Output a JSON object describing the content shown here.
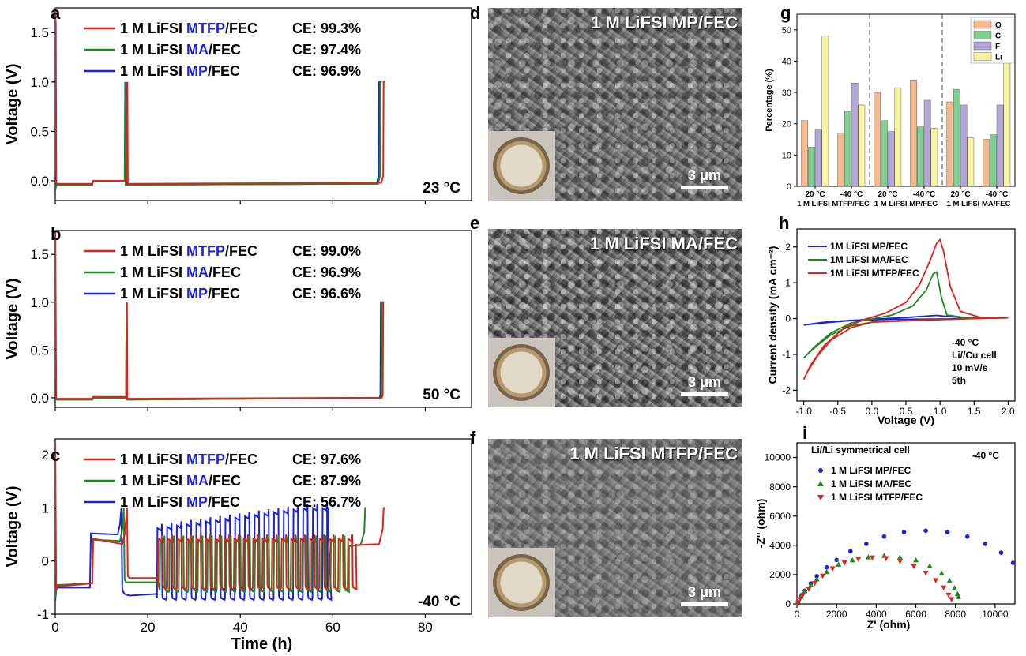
{
  "chart_data": [
    {
      "id": "a",
      "type": "line",
      "panel_label": "a",
      "xlim": [
        0,
        90
      ],
      "ylim": [
        -0.2,
        1.75
      ],
      "xticks": [
        0,
        20,
        40,
        60,
        80
      ],
      "xticklabels": [
        "",
        "",
        "",
        "",
        ""
      ],
      "yticks": [
        0.0,
        0.5,
        1.0,
        1.5
      ],
      "yticklabels": [
        "0.0",
        "0.5",
        "1.0",
        "1.5"
      ],
      "ylabel": "Voltage (V)",
      "xlabel": "",
      "annotation": "23 °C",
      "legend": [
        {
          "prefix": "1 M LiFSI ",
          "solvent": "MTFP",
          "suffix": "/FEC",
          "ce": "CE: 99.3%"
        },
        {
          "prefix": "1 M LiFSI ",
          "solvent": "MA",
          "suffix": "/FEC",
          "ce": "CE: 97.4%"
        },
        {
          "prefix": "1 M LiFSI ",
          "solvent": "MP",
          "suffix": "/FEC",
          "ce": "CE: 96.9%"
        }
      ],
      "series": [
        {
          "name": "1 M LiFSI MTFP/FEC",
          "color": "#e3211c",
          "x": [
            0,
            0.2,
            0.4,
            8,
            8.2,
            15.5,
            15.6,
            15.7,
            16,
            70.5,
            70.9,
            71,
            71.3
          ],
          "y": [
            1.9,
            -0.02,
            -0.03,
            -0.03,
            0.0,
            0.0,
            1.0,
            -0.03,
            -0.03,
            -0.02,
            0.05,
            1.0,
            1.0
          ]
        },
        {
          "name": "1 M LiFSI MA/FEC",
          "color": "#1a8a1a",
          "x": [
            0,
            0.2,
            0.4,
            8,
            8.2,
            15.0,
            15.1,
            15.2,
            15.5,
            69.8,
            70.2,
            70.3,
            70.6
          ],
          "y": [
            -0.1,
            -0.05,
            -0.04,
            -0.04,
            0.0,
            0.0,
            1.0,
            -0.04,
            -0.04,
            -0.03,
            0.05,
            1.0,
            1.0
          ]
        },
        {
          "name": "1 M LiFSI MP/FEC",
          "color": "#1a22e0",
          "x": [
            0,
            0.1,
            0.2,
            0.4,
            8,
            8.2,
            15.2,
            15.3,
            15.4,
            15.7,
            69.5,
            69.9,
            70.0,
            70.3
          ],
          "y": [
            1.65,
            1.6,
            -0.02,
            -0.04,
            -0.04,
            0.0,
            0.0,
            1.0,
            -0.04,
            -0.04,
            -0.03,
            0.05,
            1.0,
            1.0
          ]
        }
      ]
    },
    {
      "id": "b",
      "type": "line",
      "panel_label": "b",
      "xlim": [
        0,
        90
      ],
      "ylim": [
        -0.1,
        1.75
      ],
      "xticks": [
        0,
        20,
        40,
        60,
        80
      ],
      "xticklabels": [
        "",
        "",
        "",
        "",
        ""
      ],
      "yticks": [
        0.0,
        0.5,
        1.0,
        1.5
      ],
      "yticklabels": [
        "0.0",
        "0.5",
        "1.0",
        "1.5"
      ],
      "ylabel": "Voltage (V)",
      "xlabel": "",
      "annotation": "50 °C",
      "legend": [
        {
          "prefix": "1 M LiFSI ",
          "solvent": "MTFP",
          "suffix": "/FEC",
          "ce": "CE: 99.0%"
        },
        {
          "prefix": "1 M LiFSI ",
          "solvent": "MA",
          "suffix": "/FEC",
          "ce": "CE: 96.9%"
        },
        {
          "prefix": "1 M LiFSI ",
          "solvent": "MP",
          "suffix": "/FEC",
          "ce": "CE: 96.6%"
        }
      ],
      "series": [
        {
          "name": "1 M LiFSI MTFP/FEC",
          "color": "#e3211c",
          "x": [
            0,
            0.2,
            0.4,
            8,
            8.2,
            15.4,
            15.5,
            15.6,
            16,
            70.6,
            70.8,
            70.9,
            71.1
          ],
          "y": [
            1.9,
            -0.01,
            -0.01,
            -0.01,
            0.01,
            0.01,
            1.0,
            -0.01,
            -0.01,
            0.0,
            0.03,
            1.0,
            1.0
          ]
        },
        {
          "name": "1 M LiFSI MA/FEC",
          "color": "#1a8a1a",
          "x": [
            0,
            0.2,
            0.4,
            8,
            8.2,
            15.3,
            15.4,
            15.5,
            16,
            70.3,
            70.5,
            70.6,
            70.8
          ],
          "y": [
            -0.02,
            -0.02,
            -0.02,
            -0.02,
            0.0,
            0.0,
            1.0,
            -0.02,
            -0.02,
            0.0,
            0.03,
            1.0,
            1.0
          ]
        },
        {
          "name": "1 M LiFSI MP/FEC",
          "color": "#1a22e0",
          "x": [
            0,
            0.2,
            0.4,
            8,
            8.2,
            15.3,
            15.4,
            15.5,
            16,
            70.1,
            70.3,
            70.4,
            70.6
          ],
          "y": [
            -0.02,
            -0.02,
            -0.02,
            -0.02,
            0.0,
            0.0,
            1.0,
            -0.02,
            -0.02,
            0.0,
            0.03,
            1.0,
            1.0
          ]
        }
      ]
    },
    {
      "id": "c",
      "type": "line",
      "panel_label": "c",
      "xlim": [
        0,
        90
      ],
      "ylim": [
        -1.0,
        2.3
      ],
      "xticks": [
        0,
        20,
        40,
        60,
        80
      ],
      "xticklabels": [
        "0",
        "20",
        "40",
        "60",
        "80"
      ],
      "yticks": [
        -1,
        0,
        1,
        2
      ],
      "yticklabels": [
        "-1",
        "0",
        "1",
        "2"
      ],
      "ylabel": "Voltage (V)",
      "xlabel": "Time (h)",
      "annotation": "-40 °C",
      "legend": [
        {
          "prefix": "1 M LiFSI ",
          "solvent": "MTFP",
          "suffix": "/FEC",
          "ce": "CE: 97.6%"
        },
        {
          "prefix": "1 M LiFSI ",
          "solvent": "MA",
          "suffix": "/FEC",
          "ce": "CE: 87.9%"
        },
        {
          "prefix": "1 M LiFSI ",
          "solvent": "MP",
          "suffix": "/FEC",
          "ce": "CE: 56.7%"
        }
      ],
      "series": [
        {
          "name": "1 M LiFSI MTFP/FEC",
          "color": "#e3211c",
          "x": [
            0,
            0.2,
            0.5,
            8,
            8.2,
            14.5,
            15,
            15.5,
            15.7,
            16,
            22.2
          ],
          "y": [
            2.2,
            -0.55,
            -0.48,
            -0.42,
            0.42,
            0.32,
            0.5,
            1.0,
            -0.28,
            -0.32,
            -0.32
          ],
          "cycle": {
            "start": 22.2,
            "period": 2.05,
            "count": 21,
            "low": -0.5,
            "high": 0.42
          },
          "tail": {
            "x": [
              65.0,
              65.1,
              70,
              70.8,
              71,
              71.3
            ],
            "y": [
              0.32,
              0.3,
              0.32,
              0.6,
              1.0,
              1.0
            ]
          }
        },
        {
          "name": "1 M LiFSI MA/FEC",
          "color": "#1a8a1a",
          "x": [
            0,
            0.2,
            0.5,
            8,
            8.2,
            14,
            14.5,
            14.8,
            15.0,
            15.3,
            22.2
          ],
          "y": [
            -0.7,
            -0.5,
            -0.45,
            -0.42,
            0.4,
            0.38,
            0.6,
            1.0,
            -0.35,
            -0.4,
            -0.4
          ],
          "cycle": {
            "start": 22.6,
            "period": 2.05,
            "count": 20,
            "low": -0.55,
            "high": 0.4
          },
          "tail": {
            "x": [
              63.5,
              63.6,
              66,
              66.8,
              67,
              67.3
            ],
            "y": [
              0.3,
              0.28,
              0.3,
              0.55,
              1.0,
              1.0
            ]
          }
        },
        {
          "name": "1 M LiFSI MP/FEC",
          "color": "#1a22e0",
          "x": [
            0,
            0.2,
            0.5,
            7.5,
            7.7,
            13.5,
            14,
            14.3,
            14.5,
            15,
            16,
            22.0
          ],
          "y": [
            -0.75,
            -0.55,
            -0.5,
            -0.5,
            0.52,
            0.5,
            0.7,
            1.0,
            -0.55,
            -0.62,
            -0.65,
            -0.62
          ],
          "cycle": {
            "start": 22.0,
            "period": 2.1,
            "count": 18,
            "low": -0.7,
            "high": 0.62,
            "growth": 0.025
          },
          "tail": {
            "x": [
              59.0,
              59.1,
              59.2
            ],
            "y": [
              0.62,
              1.0,
              1.0
            ]
          }
        }
      ]
    },
    {
      "id": "g",
      "type": "bar",
      "panel_label": "g",
      "ylabel": "Percentage (%)",
      "ylim": [
        0,
        55
      ],
      "yticks": [
        0,
        10,
        20,
        30,
        40,
        50
      ],
      "yticklabels": [
        "0",
        "10",
        "20",
        "30",
        "40",
        "50"
      ],
      "categories": [
        "20 °C",
        "-40 °C",
        "20 °C",
        "-40 °C",
        "20 °C",
        "-40 °C"
      ],
      "group_labels": [
        "1 M LiFSI MTFP/FEC",
        "1 M LiFSI MP/FEC",
        "1 M LiFSI MA/FEC"
      ],
      "series": [
        {
          "name": "O",
          "color": "#f5b98f",
          "values": [
            21,
            17,
            30,
            34,
            27,
            15
          ]
        },
        {
          "name": "C",
          "color": "#7ecf90",
          "values": [
            12.5,
            24,
            21,
            19,
            31,
            16.5
          ]
        },
        {
          "name": "F",
          "color": "#b3a6d8",
          "values": [
            18,
            33,
            17.5,
            27.5,
            26,
            26
          ]
        },
        {
          "name": "Li",
          "color": "#f8f3a0",
          "values": [
            48,
            26,
            31.5,
            18.5,
            15.5,
            41.5
          ]
        }
      ]
    },
    {
      "id": "h",
      "type": "line",
      "panel_label": "h",
      "xlabel": "Voltage (V)",
      "ylabel": "Current density (mA cm⁻²)",
      "xlim": [
        -1.1,
        2.1
      ],
      "ylim": [
        -2.3,
        2.5
      ],
      "xticks": [
        -1.0,
        -0.5,
        0.0,
        0.5,
        1.0,
        1.5,
        2.0
      ],
      "xticklabels": [
        "-1.0",
        "-0.5",
        "0.0",
        "0.5",
        "1.0",
        "1.5",
        "2.0"
      ],
      "yticks": [
        -2,
        -1,
        0,
        1,
        2
      ],
      "yticklabels": [
        "-2",
        "-1",
        "0",
        "1",
        "2"
      ],
      "annotation_lines": [
        "-40 °C",
        "Li//Cu cell",
        "10 mV/s",
        "5th"
      ],
      "series": [
        {
          "name": "1M LiFSI MP/FEC",
          "color": "#1a22e0",
          "x": [
            -1.0,
            -0.7,
            -0.4,
            -0.1,
            0.2,
            0.5,
            0.8,
            0.95,
            1.1,
            1.4,
            2.0,
            1.6,
            1.1,
            0.6,
            0.1,
            -0.3,
            -0.7,
            -1.0
          ],
          "y": [
            -0.18,
            -0.12,
            -0.07,
            -0.03,
            0.0,
            0.03,
            0.07,
            0.09,
            0.06,
            0.02,
            0.02,
            0.01,
            -0.01,
            -0.02,
            -0.03,
            -0.05,
            -0.1,
            -0.18
          ]
        },
        {
          "name": "1M LiFSI MA/FEC",
          "color": "#1a8a1a",
          "x": [
            -1.0,
            -0.85,
            -0.6,
            -0.3,
            0.0,
            0.3,
            0.6,
            0.8,
            0.9,
            0.95,
            1.02,
            1.1,
            1.4,
            2.0,
            1.5,
            1.0,
            0.5,
            0.0,
            -0.3,
            -0.6,
            -0.8,
            -0.95,
            -1.0
          ],
          "y": [
            -1.1,
            -0.8,
            -0.4,
            -0.12,
            -0.01,
            0.1,
            0.35,
            0.8,
            1.25,
            1.3,
            0.6,
            0.1,
            0.02,
            0.02,
            0.0,
            -0.03,
            -0.06,
            -0.1,
            -0.2,
            -0.45,
            -0.75,
            -1.0,
            -1.1
          ]
        },
        {
          "name": "1M LiFSI MTFP/FEC",
          "color": "#e3211c",
          "x": [
            -1.0,
            -0.9,
            -0.7,
            -0.4,
            -0.1,
            0.2,
            0.5,
            0.7,
            0.85,
            0.95,
            1.0,
            1.05,
            1.15,
            1.3,
            1.6,
            2.0,
            1.5,
            1.0,
            0.5,
            0.0,
            -0.3,
            -0.6,
            -0.8,
            -0.95,
            -1.0
          ],
          "y": [
            -1.7,
            -1.3,
            -0.75,
            -0.25,
            -0.02,
            0.15,
            0.45,
            0.95,
            1.6,
            2.1,
            2.2,
            1.9,
            0.9,
            0.2,
            0.03,
            0.02,
            0.0,
            -0.03,
            -0.06,
            -0.1,
            -0.25,
            -0.6,
            -1.05,
            -1.5,
            -1.7
          ]
        }
      ]
    },
    {
      "id": "i",
      "type": "scatter",
      "panel_label": "i",
      "xlabel": "Z' (ohm)",
      "ylabel": "-Z'' (ohm)",
      "xlim": [
        0,
        11000
      ],
      "ylim": [
        0,
        11000
      ],
      "xticks": [
        0,
        2000,
        4000,
        6000,
        8000,
        10000
      ],
      "xticklabels": [
        "0",
        "2000",
        "4000",
        "6000",
        "8000",
        "10000"
      ],
      "yticks": [
        0,
        2000,
        4000,
        6000,
        8000,
        10000
      ],
      "yticklabels": [
        "0",
        "2000",
        "4000",
        "6000",
        "8000",
        "10000"
      ],
      "title_left": "Li//Li symmetrical cell",
      "title_right": "-40 °C",
      "series": [
        {
          "name": "1 M LiFSI MP/FEC",
          "color": "#1a22e0",
          "marker": "circle",
          "x": [
            50,
            200,
            400,
            700,
            1000,
            1500,
            2000,
            2700,
            3500,
            4400,
            5400,
            6500,
            7600,
            8600,
            9500,
            10300,
            10900
          ],
          "y": [
            100,
            500,
            900,
            1400,
            1900,
            2500,
            3000,
            3600,
            4100,
            4600,
            4900,
            5000,
            4900,
            4600,
            4100,
            3500,
            2800
          ]
        },
        {
          "name": "1 M LiFSI MA/FEC",
          "color": "#1a8a1a",
          "marker": "triangle-up",
          "x": [
            50,
            200,
            400,
            700,
            1000,
            1500,
            2100,
            2800,
            3600,
            4400,
            5200,
            6000,
            6700,
            7300,
            7700,
            7950,
            8100,
            8150
          ],
          "y": [
            100,
            500,
            900,
            1300,
            1700,
            2200,
            2700,
            3000,
            3200,
            3300,
            3200,
            3000,
            2600,
            2100,
            1600,
            1100,
            700,
            500
          ]
        },
        {
          "name": "1 M LiFSI MTFP/FEC",
          "color": "#e3211c",
          "marker": "triangle-down",
          "x": [
            50,
            150,
            300,
            600,
            900,
            1300,
            1800,
            2400,
            3100,
            3800,
            4500,
            5200,
            5900,
            6500,
            7000,
            7400,
            7650,
            7800
          ],
          "y": [
            50,
            300,
            600,
            1000,
            1400,
            1900,
            2400,
            2800,
            3050,
            3150,
            3100,
            2900,
            2550,
            2100,
            1600,
            1100,
            600,
            300
          ]
        }
      ]
    }
  ],
  "sem_panels": [
    {
      "label": "d",
      "title": "1 M LiFSI MP/FEC",
      "scale": "3 μm"
    },
    {
      "label": "e",
      "title": "1 M LiFSI MA/FEC",
      "scale": "3 μm"
    },
    {
      "label": "f",
      "title": "1 M LiFSI MTFP/FEC",
      "scale": "3 μm"
    }
  ],
  "colors": {
    "red": "#e3211c",
    "green": "#1a8a1a",
    "blue": "#1a22e0",
    "highlight_solvent": "#1a22e0"
  }
}
